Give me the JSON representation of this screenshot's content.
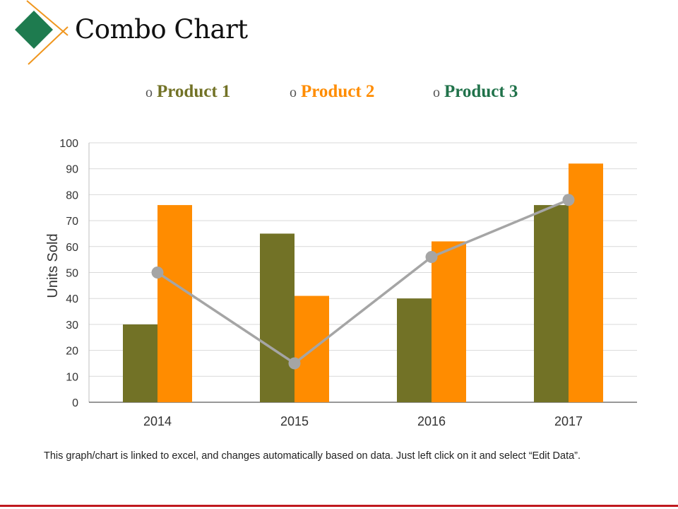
{
  "slide": {
    "title": "Combo Chart",
    "footnote": "This graph/chart is linked to excel, and changes automatically based on data. Just left click on it and select “Edit Data”."
  },
  "legend": [
    {
      "bullet": "o",
      "label": "Product 1",
      "color": "#727226"
    },
    {
      "bullet": "o",
      "label": "Product 2",
      "color": "#FF8C00"
    },
    {
      "bullet": "o",
      "label": "Product 3",
      "color": "#20724A"
    }
  ],
  "colors": {
    "brand_green": "#1E7B4F",
    "brand_orange": "#F0961E",
    "line_series": "#A5A5A5",
    "gridline": "#D9D9D9",
    "bottom_rule": "#C0191F"
  },
  "chart_data": {
    "type": "bar",
    "title": "",
    "xlabel": "",
    "ylabel": "Units Sold",
    "ylim": [
      0,
      100
    ],
    "yticks": [
      0,
      10,
      20,
      30,
      40,
      50,
      60,
      70,
      80,
      90,
      100
    ],
    "categories": [
      "2014",
      "2015",
      "2016",
      "2017"
    ],
    "grid": true,
    "series": [
      {
        "name": "Product 1",
        "kind": "bar",
        "color": "#727226",
        "values": [
          30,
          65,
          40,
          76
        ]
      },
      {
        "name": "Product 2",
        "kind": "bar",
        "color": "#FF8C00",
        "values": [
          76,
          41,
          62,
          92
        ]
      },
      {
        "name": "Product 3",
        "kind": "line",
        "color": "#A5A5A5",
        "values": [
          50,
          15,
          56,
          78
        ]
      }
    ]
  }
}
